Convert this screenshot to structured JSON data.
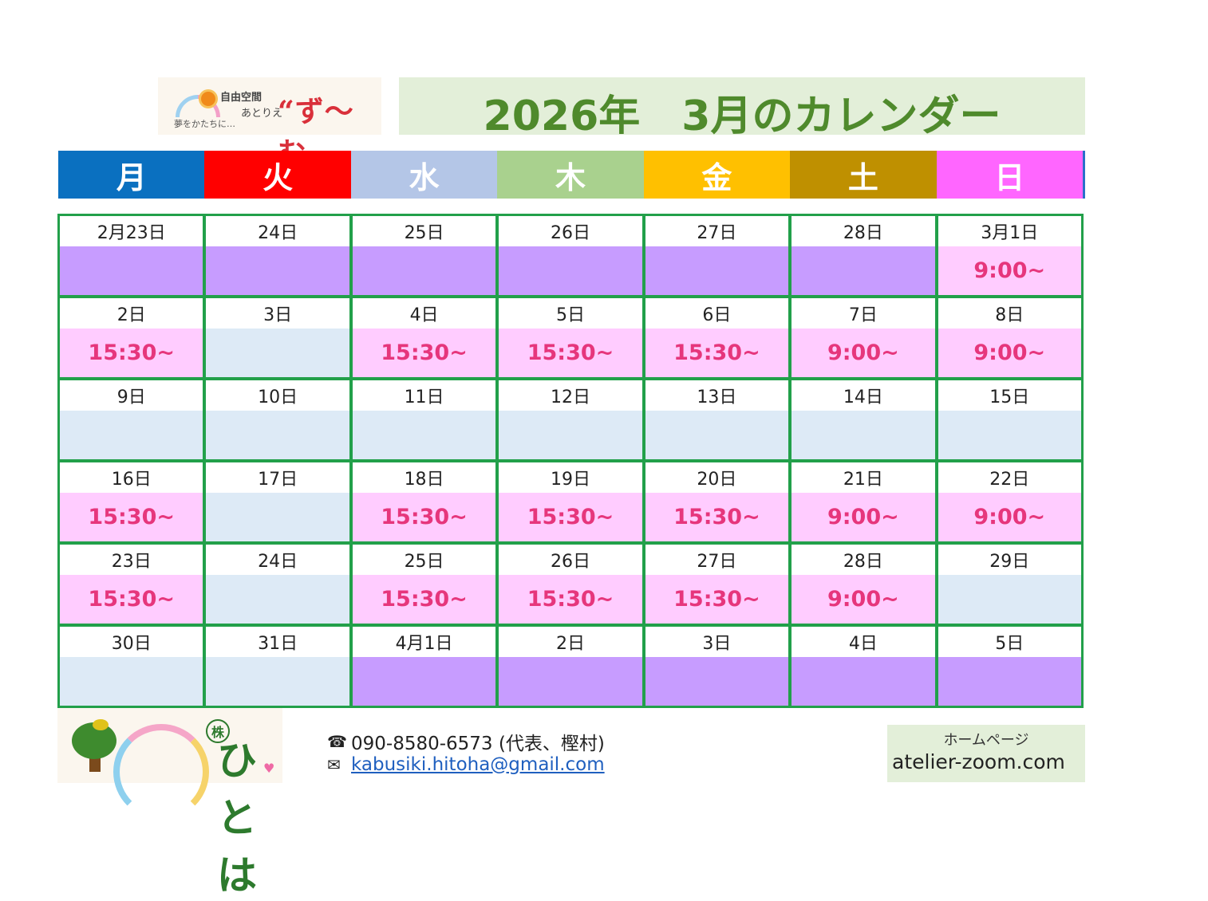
{
  "header": {
    "logo": {
      "brand_small": "自由空間",
      "brand_kana": "あとりえ",
      "tagline": "夢をかたちに…",
      "brand_big": "“ず〜む„"
    },
    "title": "2026年　3月のカレンダー"
  },
  "weekdays": [
    {
      "label": "月",
      "color": "#0a70c0"
    },
    {
      "label": "火",
      "color": "#ff0000"
    },
    {
      "label": "水",
      "color": "#b4c6e7"
    },
    {
      "label": "木",
      "color": "#a9d18e"
    },
    {
      "label": "金",
      "color": "#ffc000"
    },
    {
      "label": "土",
      "color": "#bf9000"
    },
    {
      "label": "日",
      "color": "#ff66ff"
    }
  ],
  "calendar": {
    "status_colors": {
      "out": "#c79cff",
      "open": "#ffccff",
      "closed": "#ddeaf6"
    },
    "weeks": [
      [
        {
          "date": "2月23日",
          "time": "",
          "status": "out"
        },
        {
          "date": "24日",
          "time": "",
          "status": "out"
        },
        {
          "date": "25日",
          "time": "",
          "status": "out"
        },
        {
          "date": "26日",
          "time": "",
          "status": "out"
        },
        {
          "date": "27日",
          "time": "",
          "status": "out"
        },
        {
          "date": "28日",
          "time": "",
          "status": "out"
        },
        {
          "date": "3月1日",
          "time": "9:00~",
          "status": "open"
        }
      ],
      [
        {
          "date": "2日",
          "time": "15:30~",
          "status": "open"
        },
        {
          "date": "3日",
          "time": "",
          "status": "closed"
        },
        {
          "date": "4日",
          "time": "15:30~",
          "status": "open"
        },
        {
          "date": "5日",
          "time": "15:30~",
          "status": "open"
        },
        {
          "date": "6日",
          "time": "15:30~",
          "status": "open"
        },
        {
          "date": "7日",
          "time": "9:00~",
          "status": "open"
        },
        {
          "date": "8日",
          "time": "9:00~",
          "status": "open"
        }
      ],
      [
        {
          "date": "9日",
          "time": "",
          "status": "closed"
        },
        {
          "date": "10日",
          "time": "",
          "status": "closed"
        },
        {
          "date": "11日",
          "time": "",
          "status": "closed"
        },
        {
          "date": "12日",
          "time": "",
          "status": "closed"
        },
        {
          "date": "13日",
          "time": "",
          "status": "closed"
        },
        {
          "date": "14日",
          "time": "",
          "status": "closed"
        },
        {
          "date": "15日",
          "time": "",
          "status": "closed"
        }
      ],
      [
        {
          "date": "16日",
          "time": "15:30~",
          "status": "open"
        },
        {
          "date": "17日",
          "time": "",
          "status": "closed"
        },
        {
          "date": "18日",
          "time": "15:30~",
          "status": "open"
        },
        {
          "date": "19日",
          "time": "15:30~",
          "status": "open"
        },
        {
          "date": "20日",
          "time": "15:30~",
          "status": "open"
        },
        {
          "date": "21日",
          "time": "9:00~",
          "status": "open"
        },
        {
          "date": "22日",
          "time": "9:00~",
          "status": "open"
        }
      ],
      [
        {
          "date": "23日",
          "time": "15:30~",
          "status": "open"
        },
        {
          "date": "24日",
          "time": "",
          "status": "closed"
        },
        {
          "date": "25日",
          "time": "15:30~",
          "status": "open"
        },
        {
          "date": "26日",
          "time": "15:30~",
          "status": "open"
        },
        {
          "date": "27日",
          "time": "15:30~",
          "status": "open"
        },
        {
          "date": "28日",
          "time": "9:00~",
          "status": "open"
        },
        {
          "date": "29日",
          "time": "",
          "status": "closed"
        }
      ],
      [
        {
          "date": "30日",
          "time": "",
          "status": "closed"
        },
        {
          "date": "31日",
          "time": "",
          "status": "closed"
        },
        {
          "date": "4月1日",
          "time": "",
          "status": "out"
        },
        {
          "date": "2日",
          "time": "",
          "status": "out"
        },
        {
          "date": "3日",
          "time": "",
          "status": "out"
        },
        {
          "date": "4日",
          "time": "",
          "status": "out"
        },
        {
          "date": "5日",
          "time": "",
          "status": "out"
        }
      ]
    ]
  },
  "footer": {
    "company_mark": "株",
    "company_name": "ひとは",
    "phone_icon": "phone-icon",
    "phone": "090-8580-6573 (代表、樫村)",
    "mail_icon": "mail-icon",
    "email": "kabusiki.hitoha@gmail.com",
    "homepage_label": "ホームページ",
    "homepage_url": "atelier-zoom.com"
  }
}
